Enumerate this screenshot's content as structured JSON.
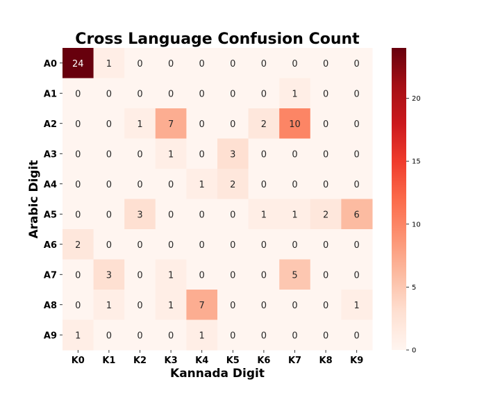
{
  "chart_data": {
    "type": "heatmap",
    "title": "Cross Language Confusion Count",
    "xlabel": "Kannada Digit",
    "ylabel": "Arabic Digit",
    "x_categories": [
      "K0",
      "K1",
      "K2",
      "K3",
      "K4",
      "K5",
      "K6",
      "K7",
      "K8",
      "K9"
    ],
    "y_categories": [
      "A0",
      "A1",
      "A2",
      "A3",
      "A4",
      "A5",
      "A6",
      "A7",
      "A8",
      "A9"
    ],
    "values": [
      [
        24,
        1,
        0,
        0,
        0,
        0,
        0,
        0,
        0,
        0
      ],
      [
        0,
        0,
        0,
        0,
        0,
        0,
        0,
        1,
        0,
        0
      ],
      [
        0,
        0,
        1,
        7,
        0,
        0,
        2,
        10,
        0,
        0
      ],
      [
        0,
        0,
        0,
        1,
        0,
        3,
        0,
        0,
        0,
        0
      ],
      [
        0,
        0,
        0,
        0,
        1,
        2,
        0,
        0,
        0,
        0
      ],
      [
        0,
        0,
        3,
        0,
        0,
        0,
        1,
        1,
        2,
        6
      ],
      [
        2,
        0,
        0,
        0,
        0,
        0,
        0,
        0,
        0,
        0
      ],
      [
        0,
        3,
        0,
        1,
        0,
        0,
        0,
        5,
        0,
        0
      ],
      [
        0,
        1,
        0,
        1,
        7,
        0,
        0,
        0,
        0,
        1
      ],
      [
        1,
        0,
        0,
        0,
        1,
        0,
        0,
        0,
        0,
        0
      ]
    ],
    "colormap": "Reds",
    "vmin": 0,
    "vmax": 24,
    "colorbar_ticks": [
      0,
      5,
      10,
      15,
      20
    ],
    "annotations": true,
    "grid": false
  }
}
